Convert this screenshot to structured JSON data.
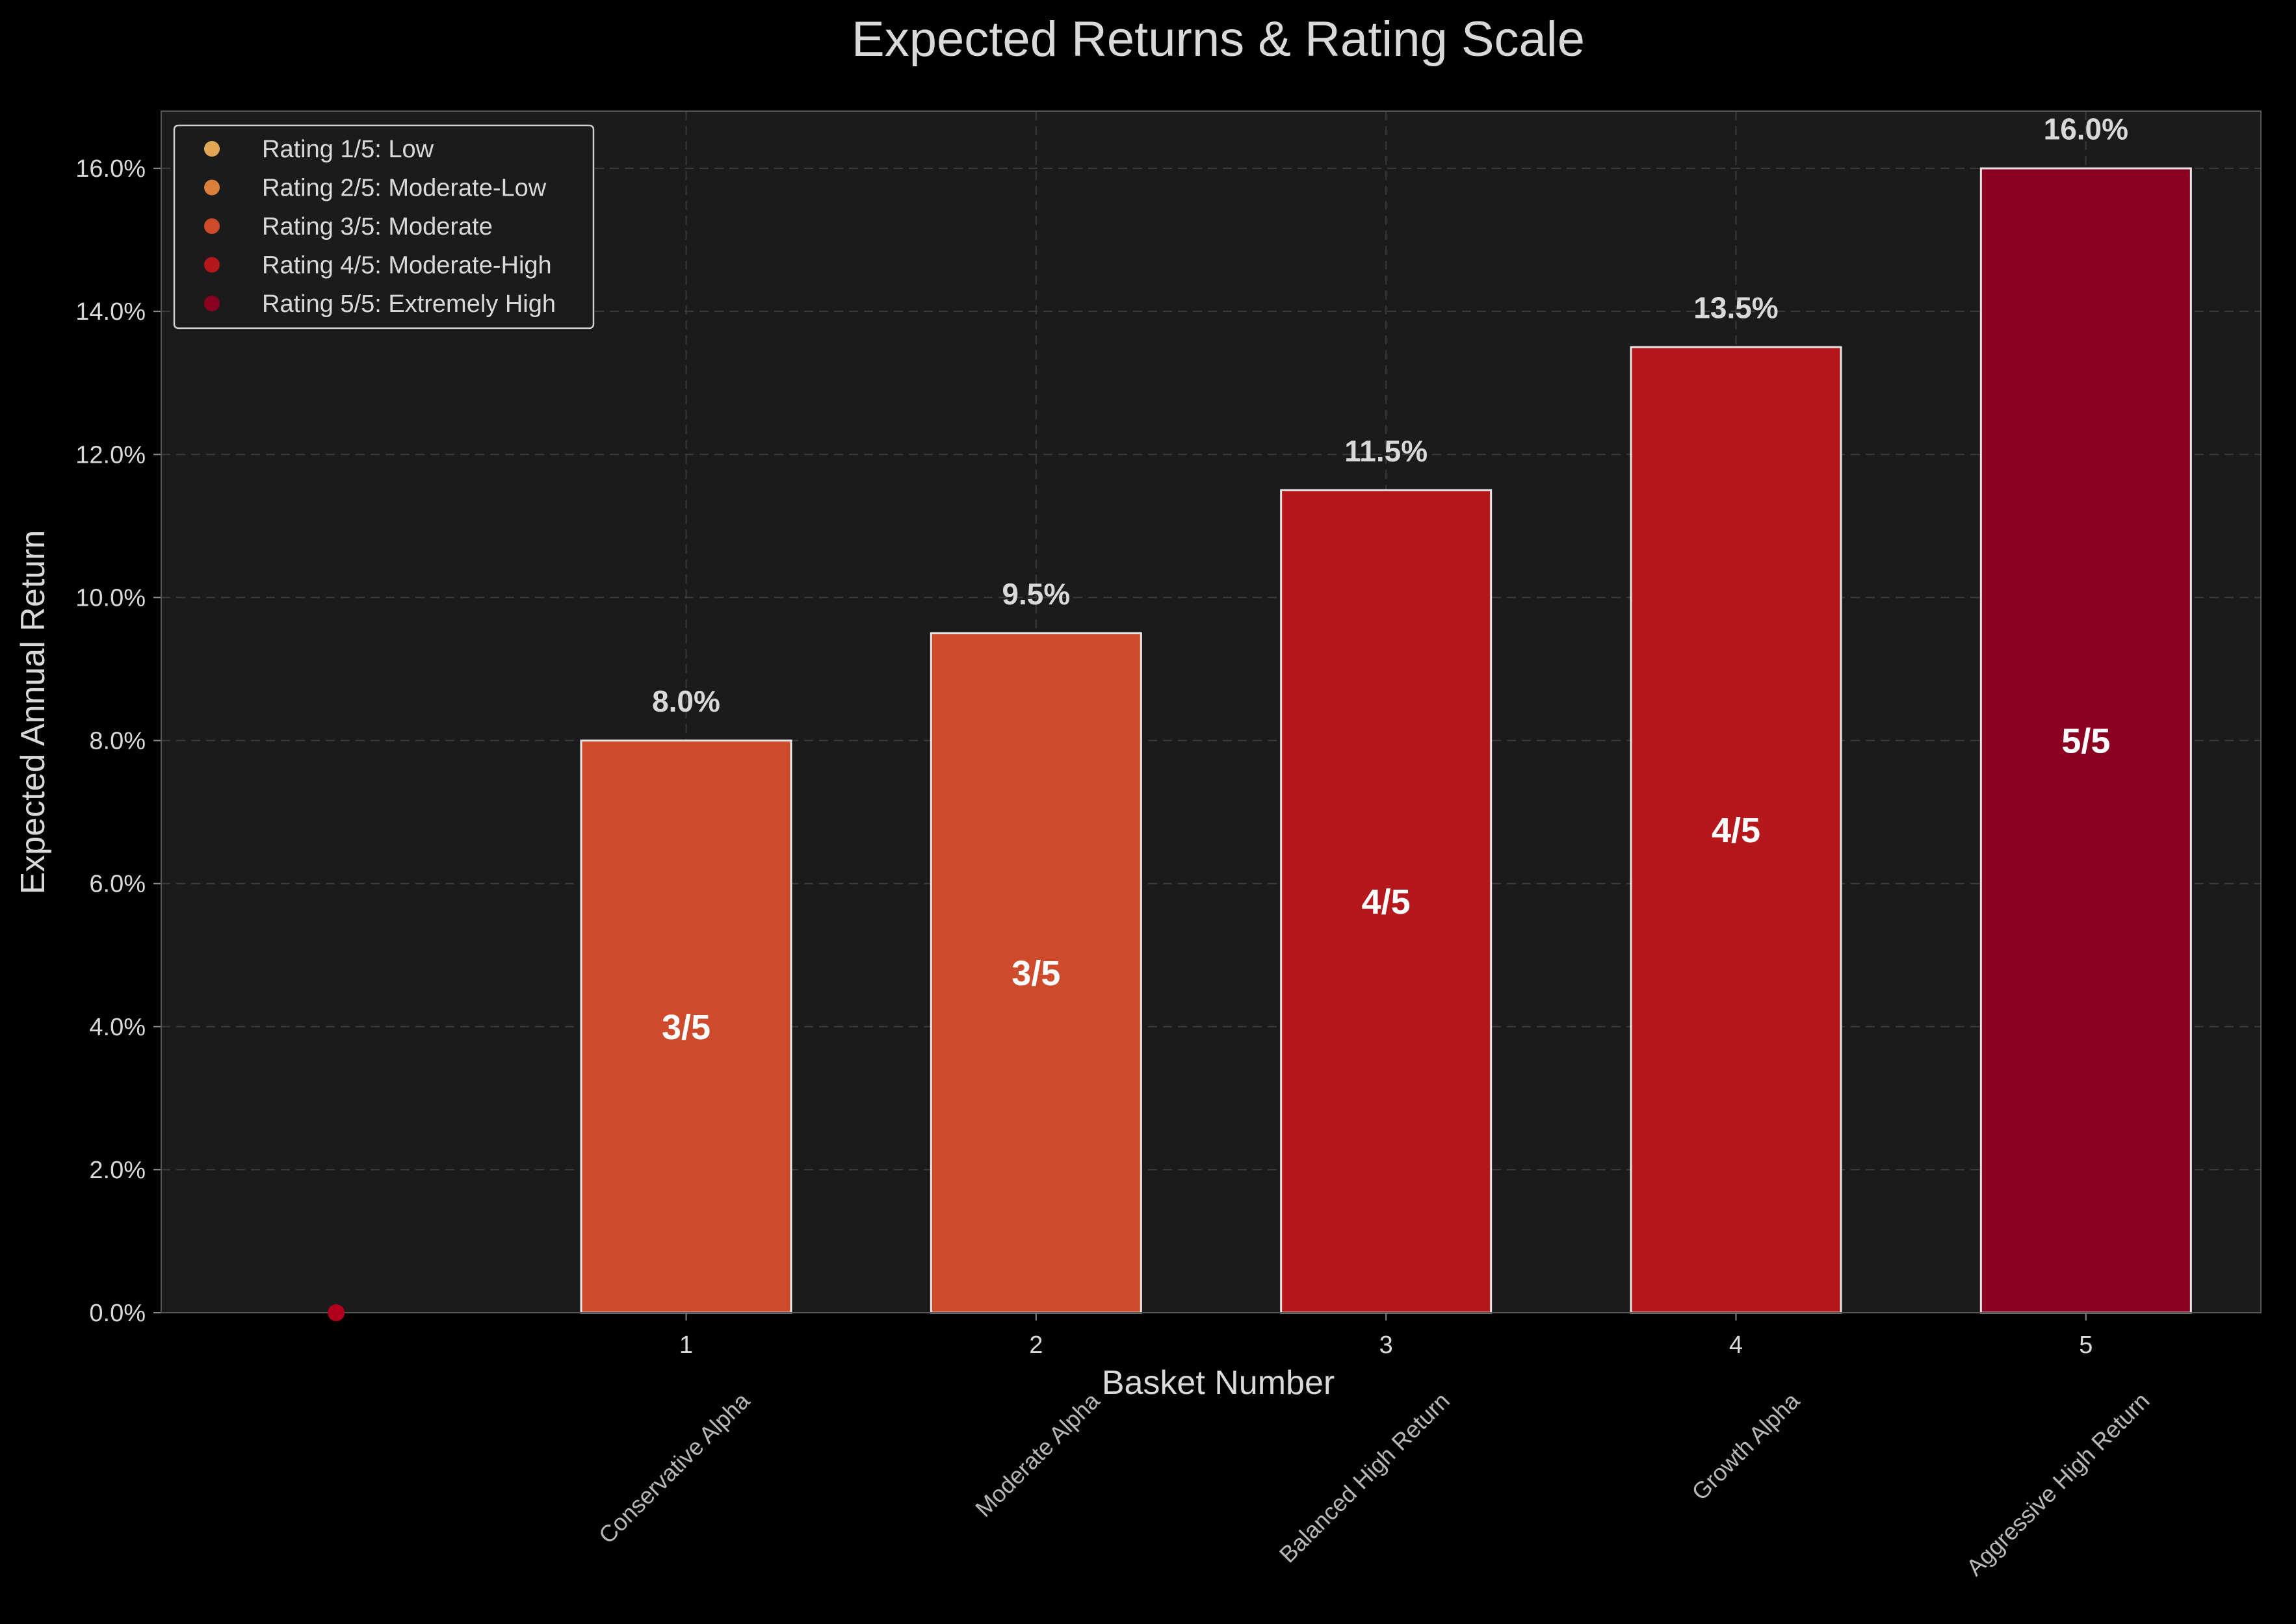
{
  "chart_data": {
    "type": "bar",
    "title": "Expected Returns & Rating Scale",
    "xlabel": "Basket Number",
    "ylabel": "Expected Annual Return",
    "categories": [
      "1",
      "2",
      "3",
      "4",
      "5"
    ],
    "category_names": [
      "Conservative Alpha",
      "Moderate Alpha",
      "Balanced High Return",
      "Growth Alpha",
      "Aggressive High Return"
    ],
    "values": [
      8.0,
      9.5,
      11.5,
      13.5,
      16.0
    ],
    "value_labels": [
      "8.0%",
      "9.5%",
      "11.5%",
      "13.5%",
      "16.0%"
    ],
    "ratings": [
      "3/5",
      "3/5",
      "4/5",
      "4/5",
      "5/5"
    ],
    "bar_colors": [
      "#cd4b2a",
      "#cd4b2a",
      "#b5181b",
      "#b5181b",
      "#8b0121"
    ],
    "ylim": [
      0,
      16.8
    ],
    "yticks": [
      0,
      2,
      4,
      6,
      8,
      10,
      12,
      14,
      16
    ],
    "ytick_labels": [
      "0.0%",
      "2.0%",
      "4.0%",
      "6.0%",
      "8.0%",
      "10.0%",
      "12.0%",
      "14.0%",
      "16.0%"
    ],
    "grid": true,
    "legend_position": "top-left",
    "legend": [
      {
        "label": "Rating 1/5: Low",
        "color": "#e0a856"
      },
      {
        "label": "Rating 2/5: Moderate-Low",
        "color": "#d9813c"
      },
      {
        "label": "Rating 3/5: Moderate",
        "color": "#cd4b2a"
      },
      {
        "label": "Rating 4/5: Moderate-High",
        "color": "#b5181b"
      },
      {
        "label": "Rating 5/5: Extremely High",
        "color": "#8b0121"
      }
    ],
    "colors": {
      "background": "#000000",
      "plot_background": "#1b1b1b",
      "grid": "#3a3a3a",
      "bar_edge": "#e6e6e6",
      "marker": "#b0001e"
    }
  }
}
